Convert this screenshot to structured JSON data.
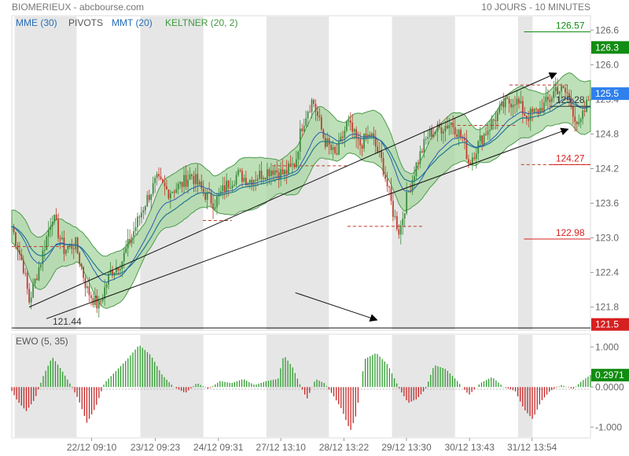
{
  "header": {
    "title": "BIOMERIEUX - abcbourse.com",
    "period": "10 JOURS - 10 MINUTES"
  },
  "legend": [
    {
      "label": "MME (30)",
      "color": "#2a6fb5"
    },
    {
      "label": "PIVOTS",
      "color": "#555555"
    },
    {
      "label": "MMT (20)",
      "color": "#2a6fb5"
    },
    {
      "label": "KELTNER (20, 2)",
      "color": "#3f9a3f"
    }
  ],
  "indicator_label": "EWO (5, 35)",
  "colors": {
    "up_candle": "#3a8a3a",
    "down_candle": "#c0392b",
    "keltner_fill": "#a8d5a0",
    "keltner_line": "#4b9b4b",
    "mme_line": "#1f7a8c",
    "mmt_line": "#2a5db0",
    "shade": "#e6e6e6",
    "last_price_badge": "#2f80ed",
    "green_badge": "#128c12",
    "red_badge": "#d62020",
    "ewo_pos": "#2e9b2e",
    "ewo_neg": "#c62828"
  },
  "chart_data": [
    {
      "type": "candlestick",
      "title": "BIOMERIEUX",
      "x_labels": [
        "22/12 09:10",
        "23/12 09:23",
        "24/12 09:31",
        "27/12 13:10",
        "28/12 13:22",
        "29/12 13:30",
        "30/12 13:43",
        "31/12 13:54"
      ],
      "y_ticks": [
        121.8,
        122.4,
        123.0,
        123.6,
        124.2,
        124.8,
        125.4,
        126.0,
        126.6
      ],
      "y_tick_labels": [
        "121.8",
        "122.4",
        "123.0",
        "123.6",
        "124.2",
        "124.8",
        "125.4",
        "126.0",
        "126.6"
      ],
      "ylim": [
        121.4,
        126.85
      ],
      "grid": false,
      "series": [
        {
          "name": "MME (30)",
          "type": "line"
        },
        {
          "name": "MMT (20)",
          "type": "line"
        },
        {
          "name": "KELTNER (20, 2)",
          "type": "band"
        }
      ],
      "close_path": [
        [
          0.0,
          123.2
        ],
        [
          0.02,
          122.5
        ],
        [
          0.03,
          121.9
        ],
        [
          0.05,
          122.6
        ],
        [
          0.07,
          123.4
        ],
        [
          0.09,
          122.8
        ],
        [
          0.11,
          122.9
        ],
        [
          0.13,
          122.1
        ],
        [
          0.15,
          121.8
        ],
        [
          0.17,
          122.4
        ],
        [
          0.19,
          122.6
        ],
        [
          0.21,
          123.1
        ],
        [
          0.23,
          123.6
        ],
        [
          0.25,
          124.0
        ],
        [
          0.27,
          123.8
        ],
        [
          0.29,
          123.9
        ],
        [
          0.31,
          124.1
        ],
        [
          0.33,
          123.8
        ],
        [
          0.35,
          123.6
        ],
        [
          0.37,
          123.9
        ],
        [
          0.39,
          124.1
        ],
        [
          0.41,
          124.0
        ],
        [
          0.43,
          124.1
        ],
        [
          0.45,
          124.2
        ],
        [
          0.47,
          124.1
        ],
        [
          0.49,
          124.3
        ],
        [
          0.5,
          124.9
        ],
        [
          0.51,
          125.2
        ],
        [
          0.52,
          125.4
        ],
        [
          0.54,
          124.7
        ],
        [
          0.56,
          124.4
        ],
        [
          0.58,
          125.0
        ],
        [
          0.6,
          124.6
        ],
        [
          0.62,
          124.8
        ],
        [
          0.64,
          124.3
        ],
        [
          0.66,
          123.4
        ],
        [
          0.67,
          123.1
        ],
        [
          0.68,
          123.6
        ],
        [
          0.7,
          124.3
        ],
        [
          0.72,
          124.8
        ],
        [
          0.74,
          124.9
        ],
        [
          0.76,
          125.0
        ],
        [
          0.78,
          124.7
        ],
        [
          0.79,
          124.3
        ],
        [
          0.81,
          124.7
        ],
        [
          0.83,
          125.0
        ],
        [
          0.85,
          125.3
        ],
        [
          0.87,
          125.4
        ],
        [
          0.89,
          125.1
        ],
        [
          0.91,
          125.2
        ],
        [
          0.93,
          125.4
        ],
        [
          0.94,
          125.6
        ],
        [
          0.96,
          125.5
        ],
        [
          0.98,
          124.9
        ],
        [
          1.0,
          125.5
        ]
      ],
      "annotations": [
        {
          "label": "121.44",
          "value": 121.44,
          "kind": "support-line"
        },
        {
          "label": "126.57",
          "value": 126.57,
          "kind": "pivot-high",
          "color": "green"
        },
        {
          "label": "125.28",
          "value": 125.28,
          "kind": "pivot"
        },
        {
          "label": "124.27",
          "value": 124.27,
          "kind": "pivot",
          "color": "red"
        },
        {
          "label": "122.98",
          "value": 122.98,
          "kind": "pivot-low",
          "color": "red"
        }
      ],
      "price_badges": [
        {
          "label": "126.3",
          "value": 126.3,
          "color": "green"
        },
        {
          "label": "125.5",
          "value": 125.5,
          "color": "blue"
        },
        {
          "label": "121.5",
          "value": 121.5,
          "color": "red"
        }
      ],
      "trendlines": [
        {
          "from": [
            121.8,
            0.03
          ],
          "to": [
            125.85,
            0.94
          ],
          "arrow": true
        },
        {
          "from": [
            121.6,
            0.06
          ],
          "to": [
            124.88,
            0.96
          ],
          "arrow": true
        },
        {
          "from": [
            121.44,
            0.0
          ],
          "to": [
            121.44,
            1.0
          ],
          "arrow": false
        },
        {
          "from": [
            122.05,
            0.49
          ],
          "to": [
            121.58,
            0.63
          ],
          "arrow": true
        }
      ]
    },
    {
      "type": "bar",
      "title": "EWO (5, 35)",
      "y_ticks": [
        -1.0,
        0.0,
        1.0
      ],
      "y_tick_labels": [
        "-1.000",
        "0.0000",
        "1.000"
      ],
      "ylim": [
        -1.25,
        1.3
      ],
      "last_value": "0.2971",
      "wave": [
        [
          0.0,
          -0.1
        ],
        [
          0.01,
          -0.35
        ],
        [
          0.025,
          -0.6
        ],
        [
          0.04,
          -0.3
        ],
        [
          0.055,
          0.3
        ],
        [
          0.07,
          0.75
        ],
        [
          0.085,
          0.45
        ],
        [
          0.1,
          0.1
        ],
        [
          0.115,
          -0.3
        ],
        [
          0.13,
          -0.9
        ],
        [
          0.145,
          -0.5
        ],
        [
          0.16,
          0.1
        ],
        [
          0.18,
          0.4
        ],
        [
          0.2,
          0.7
        ],
        [
          0.22,
          1.05
        ],
        [
          0.24,
          0.8
        ],
        [
          0.26,
          0.3
        ],
        [
          0.28,
          0.0
        ],
        [
          0.3,
          -0.15
        ],
        [
          0.32,
          0.1
        ],
        [
          0.34,
          -0.05
        ],
        [
          0.36,
          0.15
        ],
        [
          0.38,
          0.1
        ],
        [
          0.4,
          0.2
        ],
        [
          0.42,
          0.05
        ],
        [
          0.44,
          0.15
        ],
        [
          0.46,
          0.2
        ],
        [
          0.47,
          0.8
        ],
        [
          0.485,
          0.5
        ],
        [
          0.5,
          0.0
        ],
        [
          0.51,
          -0.3
        ],
        [
          0.525,
          0.2
        ],
        [
          0.54,
          0.1
        ],
        [
          0.555,
          -0.2
        ],
        [
          0.57,
          -0.55
        ],
        [
          0.585,
          -1.1
        ],
        [
          0.595,
          -0.7
        ],
        [
          0.61,
          0.7
        ],
        [
          0.63,
          0.85
        ],
        [
          0.65,
          0.55
        ],
        [
          0.67,
          -0.05
        ],
        [
          0.685,
          -0.4
        ],
        [
          0.7,
          -0.3
        ],
        [
          0.715,
          -0.05
        ],
        [
          0.73,
          0.55
        ],
        [
          0.75,
          0.45
        ],
        [
          0.77,
          0.15
        ],
        [
          0.79,
          -0.2
        ],
        [
          0.81,
          0.1
        ],
        [
          0.83,
          0.25
        ],
        [
          0.85,
          0.0
        ],
        [
          0.87,
          -0.1
        ],
        [
          0.885,
          -0.55
        ],
        [
          0.9,
          -0.8
        ],
        [
          0.915,
          -0.35
        ],
        [
          0.93,
          -0.1
        ],
        [
          0.95,
          0.05
        ],
        [
          0.97,
          -0.05
        ],
        [
          0.985,
          0.15
        ],
        [
          1.0,
          0.3
        ]
      ]
    }
  ]
}
